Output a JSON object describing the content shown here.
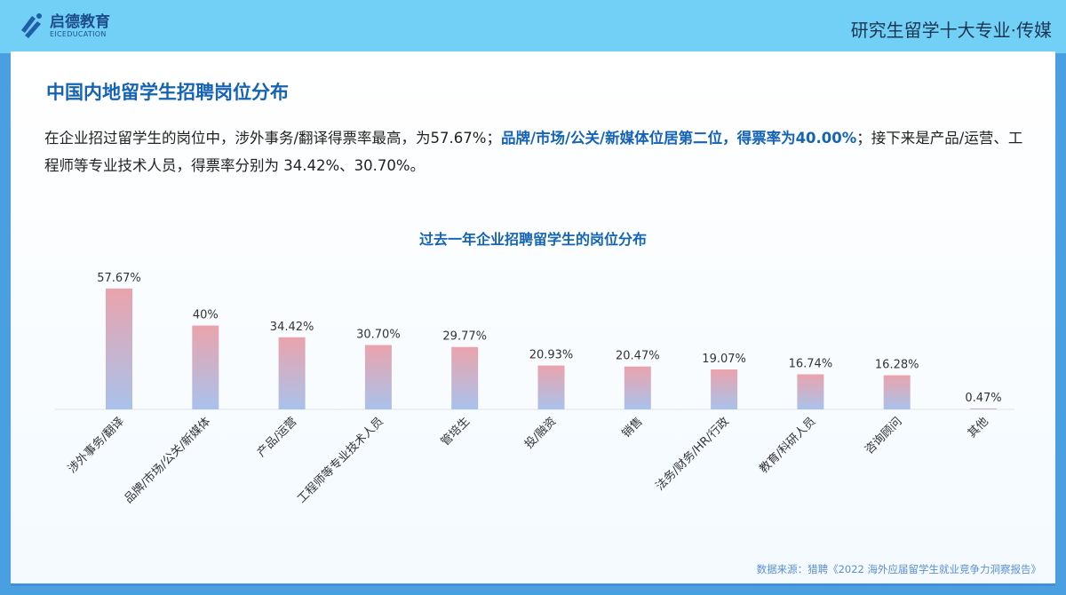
{
  "header": {
    "logo_cn": "启德教育",
    "logo_en": "EICEDUCATION",
    "title": "研究生留学十大专业·传媒"
  },
  "section_title": "中国内地留学生招聘岗位分布",
  "paragraph": {
    "part1": "在企业招过留学生的岗位中，涉外事务/翻译得票率最高，为57.67%；",
    "highlight": "品牌/市场/公关/新媒体位居第二位，得票率为40.00%",
    "part2": "；接下来是产品/运营、工程师等专业技术人员，得票率分别为 34.42%、30.70%。"
  },
  "colors": {
    "accent": "#1463b5",
    "bar_top": "#eaa3ac",
    "bar_bottom": "#a9c2ec"
  },
  "chart_data": {
    "type": "bar",
    "title": "过去一年企业招聘留学生的岗位分布",
    "categories": [
      "涉外事务/翻译",
      "品牌/市场/公关/新媒体",
      "产品/运营",
      "工程师等专业技术人员",
      "管培生",
      "投/融资",
      "销售",
      "法务/财务/HR/行政",
      "教育/科研人员",
      "咨询顾问",
      "其他"
    ],
    "values": [
      57.67,
      40,
      34.42,
      30.7,
      29.77,
      20.93,
      20.47,
      19.07,
      16.74,
      16.28,
      0.47
    ],
    "data_labels": [
      "57.67%",
      "40%",
      "34.42%",
      "30.70%",
      "29.77%",
      "20.93%",
      "20.47%",
      "19.07%",
      "16.74%",
      "16.28%",
      "0.47%"
    ],
    "ylim": [
      0,
      60
    ],
    "grid": false
  },
  "source": "数据来源：猎聘《2022 海外应届留学生就业竞争力洞察报告》"
}
